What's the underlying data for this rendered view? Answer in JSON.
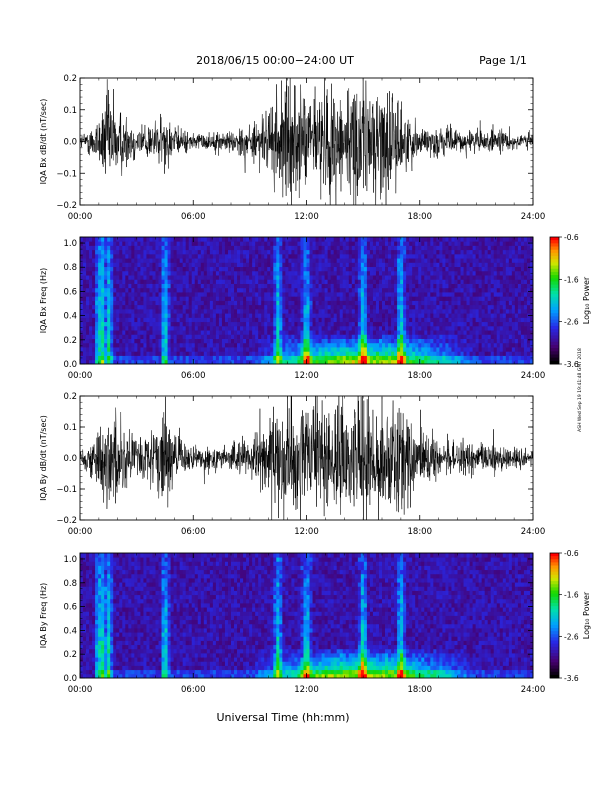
{
  "header": {
    "title": "2018/06/15   00:00−24:00 UT",
    "page": "Page 1/1"
  },
  "side_stamp": "ASH Wed Sep 19 19:41:48 GMT 2018",
  "chart_data": [
    {
      "type": "line",
      "ylabel": "IQA Bx dB/dt (nT/sec)",
      "ylim": [
        -0.2,
        0.2
      ],
      "yticks": [
        "0.2",
        "0.1",
        "0.0",
        "−0.1",
        "−0.2"
      ],
      "xticks": [
        "00:00",
        "06:00",
        "12:00",
        "18:00",
        "24:00"
      ],
      "xlim_hours": [
        0,
        24
      ],
      "color": "#000000",
      "amplitude_envelope": {
        "hours": [
          0,
          1,
          1.5,
          2,
          3,
          4,
          4.5,
          5,
          6,
          7,
          8,
          9,
          10,
          10.5,
          11,
          12,
          13,
          14,
          15,
          16,
          16.5,
          17,
          18,
          19,
          20,
          21,
          22,
          23,
          24
        ],
        "values": [
          0.02,
          0.08,
          0.2,
          0.12,
          0.06,
          0.07,
          0.1,
          0.05,
          0.03,
          0.03,
          0.04,
          0.06,
          0.1,
          0.2,
          0.2,
          0.16,
          0.2,
          0.2,
          0.2,
          0.2,
          0.2,
          0.12,
          0.05,
          0.05,
          0.04,
          0.04,
          0.04,
          0.03,
          0.03
        ]
      }
    },
    {
      "type": "heatmap",
      "ylabel": "IQA Bx Freq (Hz)",
      "ylim": [
        0.0,
        1.05
      ],
      "yticks": [
        "1.0",
        "0.8",
        "0.6",
        "0.4",
        "0.2",
        "0.0"
      ],
      "xticks": [
        "00:00",
        "06:00",
        "12:00",
        "18:00",
        "24:00"
      ],
      "xlim_hours": [
        0,
        24
      ],
      "colorbar": {
        "label": "Log₁₀ Power",
        "range": [
          -3.6,
          -0.6
        ],
        "ticks": [
          "-0.6",
          "-1.6",
          "-2.6",
          "-3.6"
        ]
      },
      "bursts_hours": [
        1.0,
        1.2,
        1.5,
        4.5,
        10.5,
        12.0,
        15.0,
        17.0
      ],
      "low_freq_band_hours": [
        9,
        21
      ]
    },
    {
      "type": "line",
      "ylabel": "IQA By dB/dt (nT/sec)",
      "ylim": [
        -0.2,
        0.2
      ],
      "yticks": [
        "0.2",
        "0.1",
        "0.0",
        "−0.1",
        "−0.2"
      ],
      "xticks": [
        "00:00",
        "06:00",
        "12:00",
        "18:00",
        "24:00"
      ],
      "xlim_hours": [
        0,
        24
      ],
      "color": "#000000",
      "amplitude_envelope": {
        "hours": [
          0,
          1,
          1.5,
          2,
          3,
          4,
          4.5,
          5,
          6,
          7,
          8,
          9,
          10,
          10.5,
          11,
          12,
          13,
          14,
          15,
          16,
          16.5,
          17,
          18,
          19,
          20,
          21,
          22,
          23,
          24
        ],
        "values": [
          0.02,
          0.1,
          0.2,
          0.15,
          0.07,
          0.1,
          0.2,
          0.08,
          0.04,
          0.04,
          0.05,
          0.07,
          0.12,
          0.2,
          0.2,
          0.18,
          0.2,
          0.2,
          0.2,
          0.2,
          0.2,
          0.2,
          0.09,
          0.07,
          0.06,
          0.05,
          0.05,
          0.04,
          0.03
        ]
      }
    },
    {
      "type": "heatmap",
      "ylabel": "IQA By Freq (Hz)",
      "ylim": [
        0.0,
        1.05
      ],
      "yticks": [
        "1.0",
        "0.8",
        "0.6",
        "0.4",
        "0.2",
        "0.0"
      ],
      "xticks": [
        "00:00",
        "06:00",
        "12:00",
        "18:00",
        "24:00"
      ],
      "xlim_hours": [
        0,
        24
      ],
      "colorbar": {
        "label": "Log₁₀ Power",
        "range": [
          -3.6,
          -0.6
        ],
        "ticks": [
          "-0.6",
          "-1.6",
          "-2.6",
          "-3.6"
        ]
      },
      "bursts_hours": [
        1.0,
        1.2,
        1.5,
        4.5,
        10.5,
        12.0,
        15.0,
        17.0
      ],
      "low_freq_band_hours": [
        9,
        21
      ]
    }
  ],
  "xlabel": "Universal Time (hh:mm)"
}
